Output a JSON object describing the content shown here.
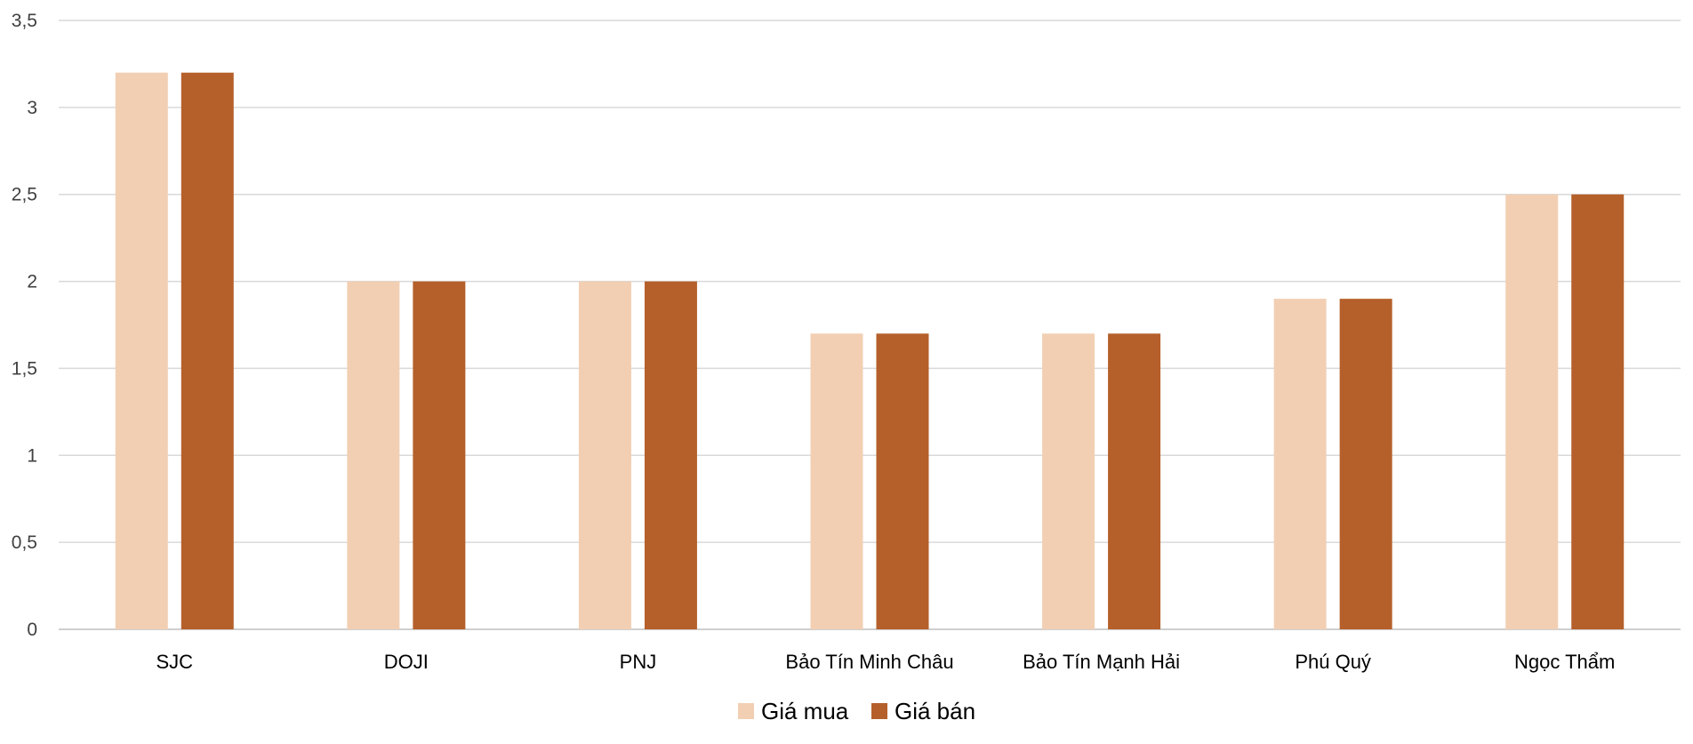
{
  "chart_data": {
    "type": "bar",
    "title": "",
    "xlabel": "",
    "ylabel": "",
    "categories": [
      "SJC",
      "DOJI",
      "PNJ",
      "Bảo Tín Minh Châu",
      "Bảo Tín Mạnh Hải",
      "Phú Quý",
      "Ngọc Thẩm"
    ],
    "series": [
      {
        "name": "Giá mua",
        "values": [
          3.2,
          2.0,
          2.0,
          1.7,
          1.7,
          1.9,
          2.5
        ]
      },
      {
        "name": "Giá bán",
        "values": [
          3.2,
          2.0,
          2.0,
          1.7,
          1.7,
          1.9,
          2.5
        ]
      }
    ],
    "ylim": [
      0,
      3.5
    ],
    "yticks": [
      0,
      0.5,
      1,
      1.5,
      2,
      2.5,
      3,
      3.5
    ],
    "ytick_labels": [
      "0",
      "0,5",
      "1",
      "1,5",
      "2",
      "2,5",
      "3",
      "3,5"
    ],
    "grid": true,
    "legend_position": "bottom",
    "colors": [
      "#f2cfb3",
      "#b5602a"
    ]
  }
}
